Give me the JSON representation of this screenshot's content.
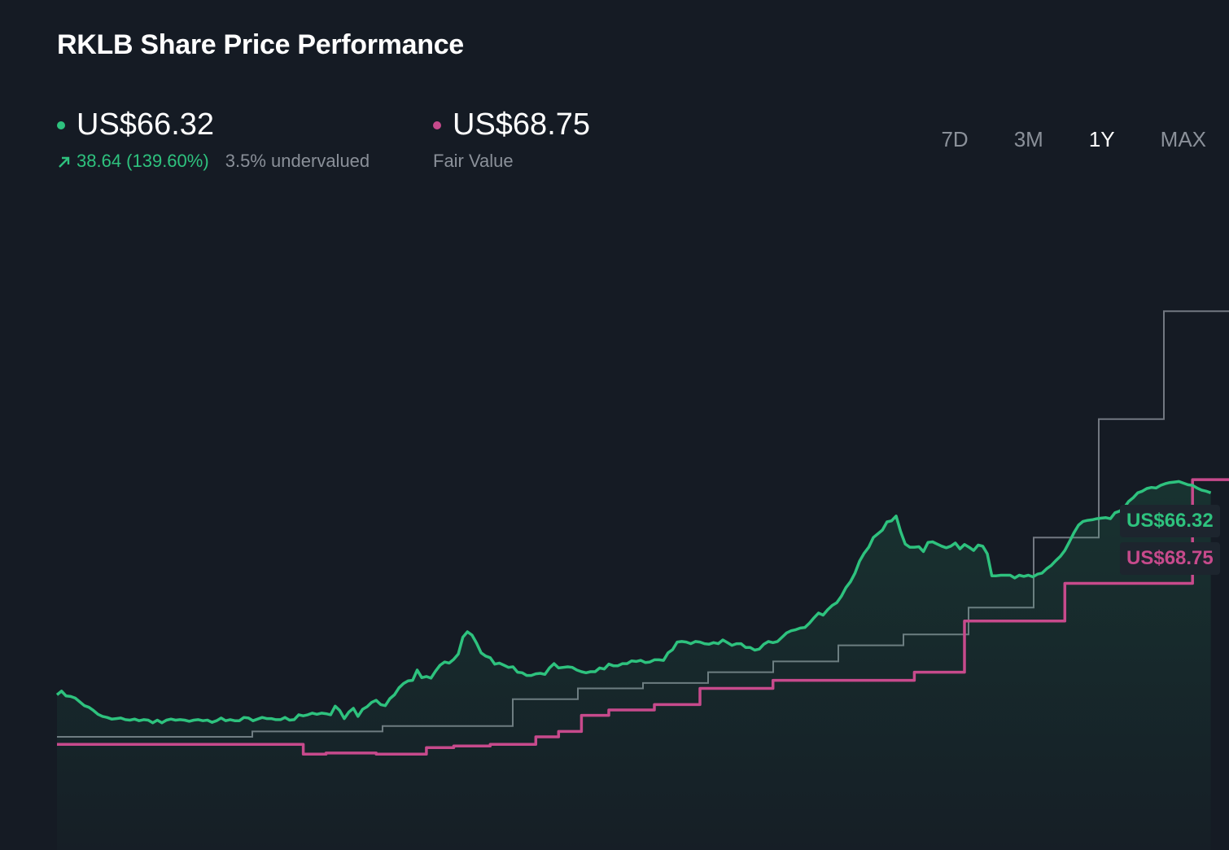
{
  "title": "RKLB Share Price Performance",
  "price_stat": {
    "value": "US$66.32",
    "change": "38.64 (139.60%)",
    "valuation": "3.5% undervalued",
    "color": "#2ec27e"
  },
  "fair_value_stat": {
    "value": "US$68.75",
    "label": "Fair Value",
    "color": "#c74a8c"
  },
  "ranges": [
    {
      "label": "7D",
      "active": false
    },
    {
      "label": "3M",
      "active": false
    },
    {
      "label": "1Y",
      "active": true
    },
    {
      "label": "MAX",
      "active": false
    }
  ],
  "end_labels": {
    "price": "US$66.32",
    "fair_value": "US$68.75"
  },
  "chart_data": {
    "type": "line",
    "x_range": [
      0,
      257
    ],
    "ylim": [
      0,
      120
    ],
    "series": [
      {
        "color": "#2ec27e",
        "values": [
          28.8,
          29.5,
          28.6,
          28.5,
          28.2,
          27.5,
          26.8,
          26.5,
          25.9,
          25.2,
          24.8,
          24.6,
          24.3,
          24.4,
          24.5,
          24.2,
          24.1,
          24.3,
          24.0,
          24.2,
          24.1,
          23.6,
          24.1,
          23.6,
          24.1,
          24.3,
          24.1,
          24.2,
          24.1,
          23.9,
          24.1,
          24.2,
          24.0,
          24.1,
          23.7,
          24.0,
          24.5,
          24.0,
          24.2,
          24.0,
          24.0,
          24.6,
          24.5,
          24.0,
          24.3,
          24.6,
          24.4,
          24.4,
          24.2,
          24.2,
          24.6,
          24.1,
          24.2,
          25.1,
          24.9,
          25.1,
          25.4,
          25.2,
          25.4,
          25.3,
          25.1,
          26.7,
          25.9,
          24.4,
          25.6,
          26.3,
          24.8,
          26.1,
          26.6,
          27.4,
          27.8,
          27.0,
          26.8,
          28.1,
          28.8,
          30.1,
          30.9,
          31.4,
          31.5,
          33.4,
          32.0,
          32.2,
          31.9,
          33.2,
          34.3,
          34.9,
          34.7,
          35.4,
          36.4,
          39.5,
          40.5,
          39.9,
          38.4,
          36.6,
          36.0,
          35.7,
          34.5,
          34.7,
          34.3,
          33.9,
          34.0,
          33.0,
          32.9,
          32.4,
          32.4,
          32.7,
          32.8,
          32.6,
          33.8,
          34.6,
          33.8,
          33.9,
          34.0,
          33.9,
          33.4,
          33.1,
          32.9,
          33.1,
          33.1,
          33.8,
          33.6,
          34.5,
          34.2,
          34.2,
          34.6,
          34.6,
          35.1,
          35.0,
          35.2,
          34.8,
          34.9,
          35.3,
          35.3,
          35.2,
          36.6,
          37.2,
          38.6,
          38.7,
          38.6,
          38.3,
          38.7,
          38.6,
          38.3,
          38.2,
          38.5,
          38.3,
          39.0,
          38.5,
          38.0,
          38.3,
          38.3,
          37.6,
          37.6,
          37.1,
          37.3,
          38.2,
          38.7,
          38.5,
          38.7,
          39.5,
          40.3,
          40.7,
          40.9,
          41.2,
          41.3,
          42.1,
          43.1,
          44.0,
          43.6,
          44.6,
          45.4,
          45.9,
          47.1,
          48.7,
          49.8,
          51.4,
          53.6,
          55.1,
          56.2,
          58.0,
          58.7,
          59.4,
          60.9,
          61.1,
          62.0,
          59.1,
          56.8,
          56.2,
          56.2,
          56.3,
          55.4,
          57.1,
          57.2,
          56.8,
          56.4,
          56.1,
          56.4,
          57.0,
          55.9,
          56.7,
          56.2,
          55.6,
          56.6,
          56.4,
          55.0,
          50.9,
          50.9,
          51.0,
          51.0,
          51.0,
          50.5,
          51.0,
          50.8,
          51.0,
          50.7,
          51.2,
          51.4,
          52.2,
          52.8,
          53.7,
          54.5,
          55.6,
          57.2,
          58.9,
          60.3,
          61.0,
          61.2,
          61.3,
          61.5,
          61.6,
          61.7,
          61.5,
          62.6,
          62.9,
          63.5,
          64.7,
          65.4,
          66.3,
          66.6,
          67.1,
          67.3,
          67.2,
          67.7,
          68.0,
          68.2,
          68.3,
          68.4,
          68.1,
          67.8,
          67.7,
          67.2,
          66.8,
          66.6,
          66.3
        ]
      },
      {
        "color": "#c74a8c",
        "values": [
          19.6,
          19.6,
          19.6,
          19.6,
          19.6,
          19.6,
          19.6,
          19.6,
          19.6,
          19.6,
          19.6,
          19.6,
          19.6,
          19.6,
          19.6,
          19.6,
          19.6,
          19.6,
          19.6,
          19.6,
          19.6,
          19.6,
          19.6,
          19.6,
          19.6,
          19.6,
          19.6,
          19.6,
          19.6,
          19.6,
          19.6,
          19.6,
          19.6,
          19.6,
          19.6,
          19.6,
          19.6,
          19.6,
          19.6,
          19.6,
          19.6,
          19.6,
          19.6,
          19.6,
          19.6,
          19.6,
          19.6,
          19.6,
          19.6,
          19.6,
          19.6,
          19.6,
          19.6,
          19.6,
          17.8,
          17.8,
          17.8,
          17.8,
          17.8,
          18.0,
          18.0,
          18.0,
          18.0,
          18.0,
          18.0,
          18.0,
          18.0,
          18.0,
          18.0,
          18.0,
          17.8,
          17.8,
          17.8,
          17.8,
          17.8,
          17.8,
          17.8,
          17.8,
          17.8,
          17.8,
          17.8,
          19.0,
          19.0,
          19.0,
          19.0,
          19.0,
          19.0,
          19.3,
          19.3,
          19.3,
          19.3,
          19.3,
          19.3,
          19.3,
          19.3,
          19.6,
          19.6,
          19.6,
          19.6,
          19.6,
          19.6,
          19.6,
          19.6,
          19.6,
          19.6,
          21.0,
          21.0,
          21.0,
          21.0,
          21.0,
          22.0,
          22.0,
          22.0,
          22.0,
          22.0,
          25.0,
          25.0,
          25.0,
          25.0,
          25.0,
          25.0,
          26.0,
          26.0,
          26.0,
          26.0,
          26.0,
          26.0,
          26.0,
          26.0,
          26.0,
          26.0,
          27.0,
          27.0,
          27.0,
          27.0,
          27.0,
          27.0,
          27.0,
          27.0,
          27.0,
          27.0,
          30.0,
          30.0,
          30.0,
          30.0,
          30.0,
          30.0,
          30.0,
          30.0,
          30.0,
          30.0,
          30.0,
          30.0,
          30.0,
          30.0,
          30.0,
          30.0,
          31.5,
          31.5,
          31.5,
          31.5,
          31.5,
          31.5,
          31.5,
          31.5,
          31.5,
          31.5,
          31.5,
          31.5,
          31.5,
          31.5,
          31.5,
          31.5,
          31.5,
          31.5,
          31.5,
          31.5,
          31.5,
          31.5,
          31.5,
          31.5,
          31.5,
          31.5,
          31.5,
          31.5,
          31.5,
          31.5,
          31.5,
          33.0,
          33.0,
          33.0,
          33.0,
          33.0,
          33.0,
          33.0,
          33.0,
          33.0,
          33.0,
          33.0,
          42.5,
          42.5,
          42.5,
          42.5,
          42.5,
          42.5,
          42.5,
          42.5,
          42.5,
          42.5,
          42.5,
          42.5,
          42.5,
          42.5,
          42.5,
          42.5,
          42.5,
          42.5,
          42.5,
          42.5,
          42.5,
          42.5,
          49.5,
          49.5,
          49.5,
          49.5,
          49.5,
          49.5,
          49.5,
          49.5,
          49.5,
          49.5,
          49.5,
          49.5,
          49.5,
          49.5,
          49.5,
          49.5,
          49.5,
          49.5,
          49.5,
          49.5,
          49.5,
          49.5,
          49.5,
          49.5,
          49.5,
          49.5,
          49.5,
          49.5,
          68.75,
          68.75,
          68.75,
          68.75,
          68.75,
          68.75,
          68.75,
          68.75,
          68.75,
          68.75
        ]
      }
    ],
    "reference_steps": [
      {
        "color": "#8a9099",
        "values": [
          21.0,
          21.0,
          21.0,
          22.0,
          22.0,
          23.0,
          23.0,
          28.0,
          30.0,
          31.0,
          33.0,
          35.0,
          38.0,
          40.0,
          45.0,
          58.0,
          80.0,
          100.0
        ]
      }
    ],
    "grid": false,
    "legend": "none"
  }
}
